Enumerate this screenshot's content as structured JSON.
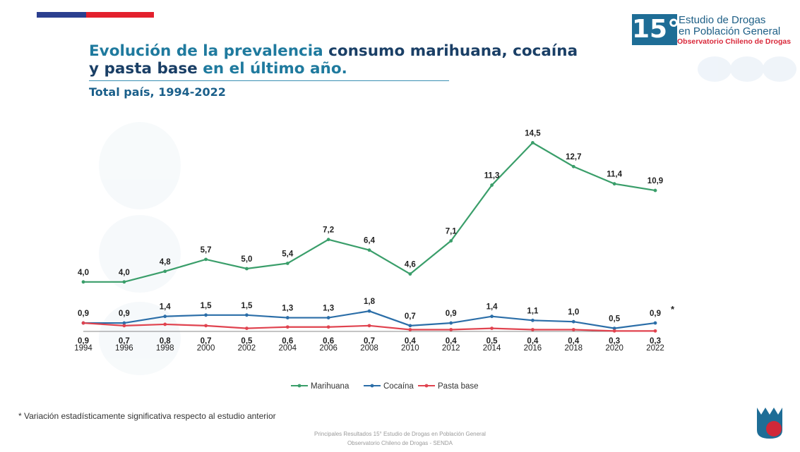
{
  "header": {
    "title_part1": "Evolución de la prevalencia",
    "title_part2": " consumo marihuana, cocaína",
    "title_part3": "y pasta base",
    "title_part4": " en el último año.",
    "subtitle": "Total país, 1994-2022"
  },
  "logo": {
    "number": "15°",
    "line1": "Estudio de Drogas",
    "line2": "en Población General",
    "line3": "Observatorio Chileno de Drogas"
  },
  "footnote": "* Variación estadísticamente significativa respecto al estudio anterior",
  "footer": {
    "line1": "Principales Resultados 15° Estudio de Drogas en Población General",
    "line2": "Observatorio Chileno de Drogas - SENDA"
  },
  "colors": {
    "marihuana": "#3a9e6a",
    "cocaina": "#2b6ea8",
    "pasta_base": "#e0434f",
    "title": "#1a3f66"
  },
  "chart_data": {
    "type": "line",
    "categories": [
      "1994",
      "1996",
      "1998",
      "2000",
      "2002",
      "2004",
      "2006",
      "2008",
      "2010",
      "2012",
      "2014",
      "2016",
      "2018",
      "2020",
      "2022"
    ],
    "series": [
      {
        "name": "Marihuana",
        "values": [
          4.0,
          4.0,
          4.8,
          5.7,
          5.0,
          5.4,
          7.2,
          6.4,
          4.6,
          7.1,
          11.3,
          14.5,
          12.7,
          11.4,
          10.9
        ],
        "labels": [
          "4,0",
          "4,0",
          "4,8",
          "5,7",
          "5,0",
          "5,4",
          "7,2",
          "6,4",
          "4,6",
          "7,1",
          "11,3",
          "14,5",
          "12,7",
          "11,4",
          "10,9"
        ]
      },
      {
        "name": "Cocaína",
        "values": [
          0.9,
          0.9,
          1.4,
          1.5,
          1.5,
          1.3,
          1.3,
          1.8,
          0.7,
          0.9,
          1.4,
          1.1,
          1.0,
          0.5,
          0.9
        ],
        "labels": [
          "0,9",
          "0,9",
          "1,4",
          "1,5",
          "1,5",
          "1,3",
          "1,3",
          "1,8",
          "0,7",
          "0,9",
          "1,4",
          "1,1",
          "1,0",
          "0,5",
          "0,9"
        ]
      },
      {
        "name": "Pasta base",
        "values": [
          0.9,
          0.7,
          0.8,
          0.7,
          0.5,
          0.6,
          0.6,
          0.7,
          0.4,
          0.4,
          0.5,
          0.4,
          0.4,
          0.3,
          0.3
        ],
        "labels": [
          "0,9",
          "0,7",
          "0,8",
          "0,7",
          "0,5",
          "0,6",
          "0,6",
          "0,7",
          "0,4",
          "0,4",
          "0,5",
          "0,4",
          "0,4",
          "0,3",
          "0,3"
        ]
      }
    ],
    "annotation": "*",
    "legend_position": "bottom",
    "grid": false,
    "ylim": [
      0,
      16
    ]
  }
}
